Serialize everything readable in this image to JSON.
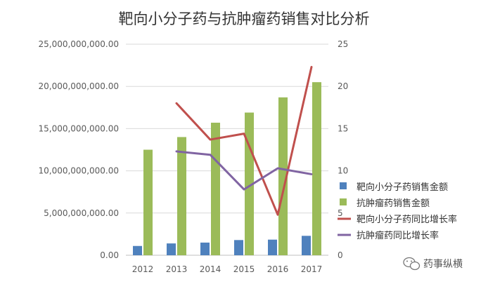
{
  "chart_data": {
    "type": "bar+line",
    "title": "靶向小分子药与抗肿瘤药销售对比分析",
    "categories": [
      "2012",
      "2013",
      "2014",
      "2015",
      "2016",
      "2017"
    ],
    "series": [
      {
        "name": "靶向小分子药销售金额",
        "kind": "bar",
        "axis": "left",
        "color": "#4f81bd",
        "values": [
          1100000000,
          1400000000,
          1500000000,
          1800000000,
          1850000000,
          2300000000
        ]
      },
      {
        "name": "抗肿瘤药销售金额",
        "kind": "bar",
        "axis": "left",
        "color": "#9bbb59",
        "values": [
          12500000000,
          14000000000,
          15700000000,
          16900000000,
          18700000000,
          20500000000
        ]
      },
      {
        "name": "靶向小分子药同比增长率",
        "kind": "line",
        "axis": "right",
        "color": "#c0504d",
        "values": [
          null,
          18.0,
          13.7,
          14.4,
          4.8,
          22.3
        ]
      },
      {
        "name": "抗肿瘤药同比增长率",
        "kind": "line",
        "axis": "right",
        "color": "#8064a2",
        "values": [
          null,
          12.3,
          11.9,
          7.8,
          10.3,
          9.6
        ]
      }
    ],
    "left_axis": {
      "ylim": [
        0,
        25000000000
      ],
      "ticks": [
        "0.00",
        "5,000,000,000.00",
        "10,000,000,000.00",
        "15,000,000,000.00",
        "20,000,000,000.00",
        "25,000,000,000.00"
      ]
    },
    "right_axis": {
      "ylim": [
        0,
        25
      ],
      "ticks": [
        "0",
        "5",
        "10",
        "15",
        "20",
        "25"
      ]
    },
    "grid": true,
    "legend_position": "right"
  },
  "watermark": {
    "text": "药事纵横"
  }
}
